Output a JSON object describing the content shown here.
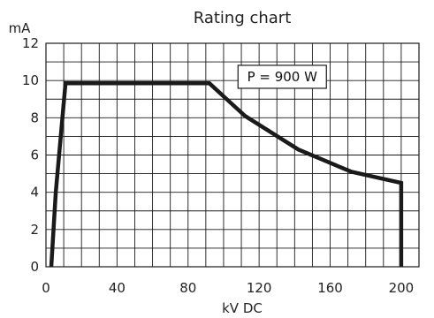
{
  "chart_data": {
    "type": "line",
    "title": "Rating chart",
    "xlabel": "kV DC",
    "ylabel": "mA",
    "xlim": [
      0,
      210
    ],
    "ylim": [
      0,
      12
    ],
    "x_ticks": [
      0,
      40,
      80,
      120,
      160,
      200
    ],
    "y_ticks": [
      0,
      2,
      4,
      6,
      8,
      10,
      12
    ],
    "x_grid_step": 10,
    "y_grid_step": 1,
    "grid": true,
    "line_color": "#1a1a1a",
    "series": [
      {
        "x": [
          3,
          5.5,
          11,
          14,
          92,
          112,
          142,
          172,
          200,
          200
        ],
        "y": [
          0,
          4,
          9.85,
          9.85,
          9.85,
          8.1,
          6.3,
          5.1,
          4.5,
          0
        ]
      }
    ],
    "annotation": {
      "text": "P = 900 W",
      "x": 133,
      "y": 10.2
    }
  }
}
